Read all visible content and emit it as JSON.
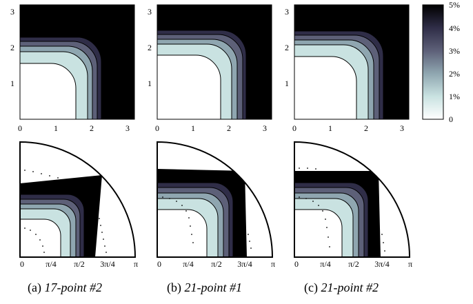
{
  "captions": [
    {
      "prefix": "(a)",
      "name": "17-point #2"
    },
    {
      "prefix": "(b)",
      "name": "21-point #1"
    },
    {
      "prefix": "(c)",
      "name": "21-point #2"
    }
  ],
  "colorbar": {
    "stops": [
      "#ffffff",
      "#c9e2e1",
      "#8fa6b0",
      "#5d6078",
      "#2f2d47",
      "#000000"
    ],
    "tick_labels": [
      "0",
      "1%",
      "2%",
      "3%",
      "4%",
      "5%"
    ],
    "tick_values": [
      0,
      1,
      2,
      3,
      4,
      5
    ],
    "range": [
      0,
      5
    ]
  },
  "chart_data": [
    {
      "type": "heatmap",
      "panel": "a-top",
      "xlim": [
        0,
        3.2
      ],
      "ylim": [
        0,
        3.2
      ],
      "x_tick_labels": [
        "0",
        "1",
        "2",
        "3"
      ],
      "y_tick_labels": [
        "1",
        "2",
        "3"
      ],
      "contour_levels": [
        "0%",
        "1%",
        "2%",
        "3%",
        "4%"
      ],
      "contour_radii": [
        {
          "level": 1,
          "corner_x": 1.56,
          "corner_y": 1.56,
          "r": 0.85
        },
        {
          "level": 2,
          "corner_x": 1.9,
          "corner_y": 1.9,
          "r": 0.95
        },
        {
          "level": 3,
          "corner_x": 2.04,
          "corner_y": 2.04,
          "r": 0.95
        },
        {
          "level": 4,
          "corner_x": 2.16,
          "corner_y": 2.16,
          "r": 0.95
        },
        {
          "level": 5,
          "corner_x": 2.28,
          "corner_y": 2.28,
          "r": 0.95
        }
      ]
    },
    {
      "type": "heatmap",
      "panel": "b-top",
      "xlim": [
        0,
        3.2
      ],
      "ylim": [
        0,
        3.2
      ],
      "x_tick_labels": [
        "0",
        "1",
        "2",
        "3"
      ],
      "y_tick_labels": [
        "1",
        "2",
        "3"
      ],
      "contour_levels": [
        "0%",
        "1%",
        "2%",
        "3%",
        "4%"
      ],
      "contour_radii": [
        {
          "level": 1,
          "corner_x": 1.8,
          "corner_y": 1.8,
          "r": 0.85
        },
        {
          "level": 2,
          "corner_x": 2.12,
          "corner_y": 2.12,
          "r": 0.95
        },
        {
          "level": 3,
          "corner_x": 2.26,
          "corner_y": 2.26,
          "r": 0.95
        },
        {
          "level": 4,
          "corner_x": 2.38,
          "corner_y": 2.38,
          "r": 0.95
        },
        {
          "level": 5,
          "corner_x": 2.48,
          "corner_y": 2.48,
          "r": 0.95
        }
      ]
    },
    {
      "type": "heatmap",
      "panel": "c-top",
      "xlim": [
        0,
        3.2
      ],
      "ylim": [
        0,
        3.2
      ],
      "x_tick_labels": [
        "0",
        "1",
        "2",
        "3"
      ],
      "y_tick_labels": [
        "1",
        "2",
        "3"
      ],
      "contour_levels": [
        "0%",
        "1%",
        "2%",
        "3%",
        "4%"
      ],
      "contour_radii": [
        {
          "level": 1,
          "corner_x": 1.76,
          "corner_y": 1.76,
          "r": 0.85
        },
        {
          "level": 2,
          "corner_x": 2.1,
          "corner_y": 2.1,
          "r": 0.95
        },
        {
          "level": 3,
          "corner_x": 2.24,
          "corner_y": 2.24,
          "r": 0.95
        },
        {
          "level": 4,
          "corner_x": 2.36,
          "corner_y": 2.36,
          "r": 0.95
        },
        {
          "level": 5,
          "corner_x": 2.46,
          "corner_y": 2.46,
          "r": 0.95
        }
      ]
    },
    {
      "type": "heatmap",
      "panel": "a-bottom",
      "xlim": [
        0,
        3.1416
      ],
      "ylim": [
        0,
        3.1416
      ],
      "x_tick_labels": [
        "0",
        "π/4",
        "π/2",
        "3π/4",
        "π"
      ],
      "quarter_circle": true
    },
    {
      "type": "heatmap",
      "panel": "b-bottom",
      "xlim": [
        0,
        3.1416
      ],
      "ylim": [
        0,
        3.1416
      ],
      "x_tick_labels": [
        "0",
        "π/4",
        "π/2",
        "3π/4",
        "π"
      ],
      "quarter_circle": true
    },
    {
      "type": "heatmap",
      "panel": "c-bottom",
      "xlim": [
        0,
        3.1416
      ],
      "ylim": [
        0,
        3.1416
      ],
      "x_tick_labels": [
        "0",
        "π/4",
        "π/2",
        "3π/4",
        "π"
      ],
      "quarter_circle": true
    }
  ]
}
